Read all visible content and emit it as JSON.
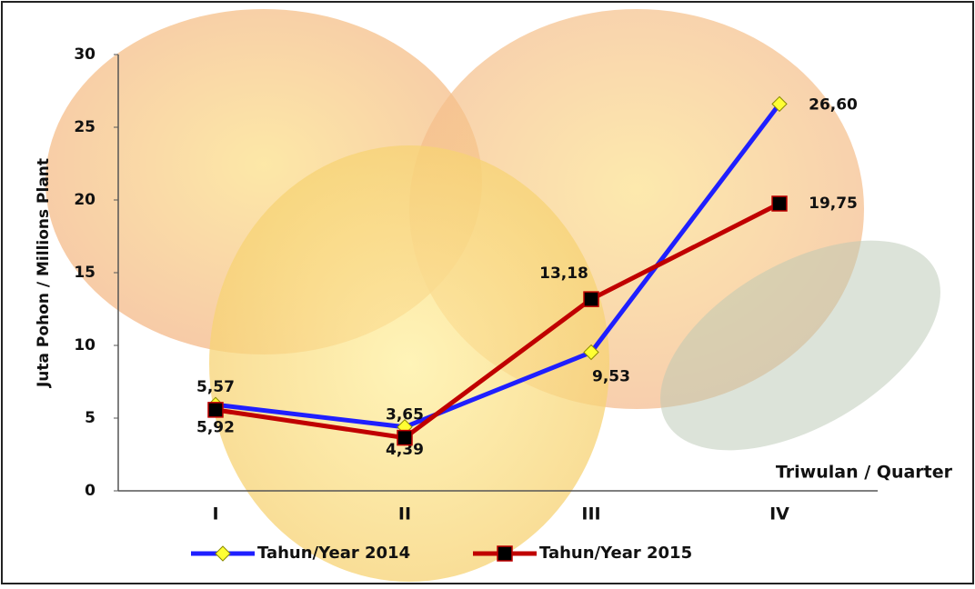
{
  "chart_data": {
    "type": "line",
    "categories": [
      "I",
      "II",
      "III",
      "IV"
    ],
    "series": [
      {
        "name": "Tahun/Year 2014",
        "color": "#1f1fff",
        "marker_fill": "#ffff33",
        "values": [
          5.92,
          4.39,
          9.53,
          26.6
        ],
        "value_labels": [
          "5,92",
          "4,39",
          "9,53",
          "26,60"
        ]
      },
      {
        "name": "Tahun/Year 2015",
        "color": "#c00000",
        "marker_fill": "#000000",
        "values": [
          5.57,
          3.65,
          13.18,
          19.75
        ],
        "value_labels": [
          "5,57",
          "3,65",
          "13,18",
          "19,75"
        ]
      }
    ],
    "ylabel": "Juta Pohon / Millions Plant",
    "xlabel": "Triwulan / Quarter",
    "ylim": [
      0,
      30
    ],
    "yticks": [
      0,
      5,
      10,
      15,
      20,
      25,
      30
    ],
    "legend": "bottom"
  }
}
